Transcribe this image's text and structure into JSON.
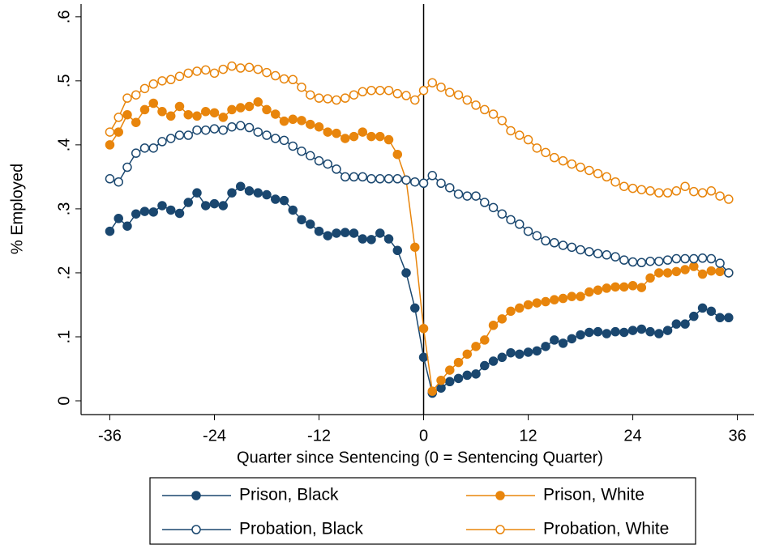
{
  "chart_data": {
    "type": "line",
    "xlabel": "Quarter since Sentencing (0 = Sentencing Quarter)",
    "ylabel": "% Employed",
    "x": [
      -36,
      -35,
      -34,
      -33,
      -32,
      -31,
      -30,
      -29,
      -28,
      -27,
      -26,
      -25,
      -24,
      -23,
      -22,
      -21,
      -20,
      -19,
      -18,
      -17,
      -16,
      -15,
      -14,
      -13,
      -12,
      -11,
      -10,
      -9,
      -8,
      -7,
      -6,
      -5,
      -4,
      -3,
      -2,
      -1,
      0,
      1,
      2,
      3,
      4,
      5,
      6,
      7,
      8,
      9,
      10,
      11,
      12,
      13,
      14,
      15,
      16,
      17,
      18,
      19,
      20,
      21,
      22,
      23,
      24,
      25,
      26,
      27,
      28,
      29,
      30,
      31,
      32,
      33,
      34,
      35
    ],
    "series": [
      {
        "name": "Prison, Black",
        "color": "#1a476f",
        "marker": "filled",
        "values": [
          0.265,
          0.285,
          0.273,
          0.292,
          0.296,
          0.295,
          0.305,
          0.298,
          0.293,
          0.31,
          0.325,
          0.305,
          0.308,
          0.305,
          0.325,
          0.335,
          0.328,
          0.325,
          0.322,
          0.315,
          0.313,
          0.298,
          0.283,
          0.276,
          0.265,
          0.258,
          0.262,
          0.263,
          0.262,
          0.253,
          0.252,
          0.262,
          0.253,
          0.235,
          0.2,
          0.145,
          0.068,
          0.012,
          0.02,
          0.03,
          0.035,
          0.04,
          0.042,
          0.055,
          0.062,
          0.068,
          0.075,
          0.073,
          0.076,
          0.078,
          0.085,
          0.095,
          0.09,
          0.097,
          0.103,
          0.107,
          0.108,
          0.105,
          0.108,
          0.107,
          0.11,
          0.112,
          0.108,
          0.105,
          0.11,
          0.12,
          0.12,
          0.132,
          0.145,
          0.14,
          0.13,
          0.13
        ]
      },
      {
        "name": "Prison, White",
        "color": "#e8850c",
        "marker": "filled",
        "values": [
          0.4,
          0.42,
          0.447,
          0.435,
          0.455,
          0.465,
          0.452,
          0.445,
          0.46,
          0.447,
          0.445,
          0.452,
          0.45,
          0.443,
          0.455,
          0.458,
          0.46,
          0.467,
          0.455,
          0.448,
          0.437,
          0.44,
          0.438,
          0.432,
          0.428,
          0.42,
          0.418,
          0.41,
          0.413,
          0.42,
          0.413,
          0.413,
          0.408,
          0.385,
          0.345,
          0.24,
          0.113,
          0.015,
          0.032,
          0.048,
          0.06,
          0.073,
          0.085,
          0.095,
          0.118,
          0.128,
          0.14,
          0.145,
          0.15,
          0.153,
          0.155,
          0.158,
          0.16,
          0.163,
          0.163,
          0.17,
          0.173,
          0.176,
          0.178,
          0.178,
          0.18,
          0.177,
          0.192,
          0.2,
          0.2,
          0.202,
          0.205,
          0.21,
          0.198,
          0.203,
          0.202,
          0.2
        ]
      },
      {
        "name": "Probation, Black",
        "color": "#1a476f",
        "marker": "hollow",
        "values": [
          0.347,
          0.342,
          0.365,
          0.387,
          0.395,
          0.395,
          0.405,
          0.41,
          0.415,
          0.415,
          0.423,
          0.423,
          0.425,
          0.423,
          0.428,
          0.43,
          0.427,
          0.42,
          0.415,
          0.41,
          0.407,
          0.398,
          0.39,
          0.383,
          0.375,
          0.37,
          0.362,
          0.35,
          0.35,
          0.35,
          0.347,
          0.347,
          0.347,
          0.347,
          0.345,
          0.342,
          0.34,
          0.352,
          0.34,
          0.333,
          0.323,
          0.32,
          0.32,
          0.31,
          0.302,
          0.292,
          0.283,
          0.276,
          0.265,
          0.258,
          0.25,
          0.247,
          0.243,
          0.24,
          0.236,
          0.233,
          0.23,
          0.228,
          0.225,
          0.22,
          0.217,
          0.216,
          0.218,
          0.218,
          0.22,
          0.222,
          0.222,
          0.222,
          0.223,
          0.222,
          0.215,
          0.2
        ]
      },
      {
        "name": "Probation, White",
        "color": "#e8850c",
        "marker": "hollow",
        "values": [
          0.42,
          0.443,
          0.473,
          0.478,
          0.488,
          0.495,
          0.5,
          0.502,
          0.507,
          0.512,
          0.515,
          0.517,
          0.512,
          0.518,
          0.523,
          0.52,
          0.521,
          0.518,
          0.513,
          0.508,
          0.503,
          0.502,
          0.49,
          0.478,
          0.473,
          0.472,
          0.47,
          0.473,
          0.478,
          0.483,
          0.485,
          0.485,
          0.485,
          0.48,
          0.477,
          0.47,
          0.485,
          0.497,
          0.49,
          0.482,
          0.478,
          0.47,
          0.462,
          0.455,
          0.448,
          0.438,
          0.422,
          0.415,
          0.408,
          0.395,
          0.388,
          0.38,
          0.375,
          0.37,
          0.365,
          0.36,
          0.355,
          0.35,
          0.342,
          0.335,
          0.332,
          0.33,
          0.328,
          0.325,
          0.325,
          0.328,
          0.335,
          0.327,
          0.325,
          0.328,
          0.32,
          0.315
        ]
      }
    ],
    "xlim": [
      -39.3,
      37.9
    ],
    "ylim": [
      -0.0215,
      0.62
    ],
    "xticks": [
      -36,
      -24,
      -12,
      0,
      12,
      24,
      36
    ],
    "yticks": [
      0,
      {
        "value": 0.1,
        "label": ".1"
      },
      {
        "value": 0.2,
        "label": ".2"
      },
      {
        "value": 0.3,
        "label": ".3"
      },
      {
        "value": 0.4,
        "label": ".4"
      },
      {
        "value": 0.5,
        "label": ".5"
      },
      {
        "value": 0.6,
        "label": ".6"
      }
    ],
    "vline": 0,
    "grid": false,
    "legend": "bottom"
  }
}
